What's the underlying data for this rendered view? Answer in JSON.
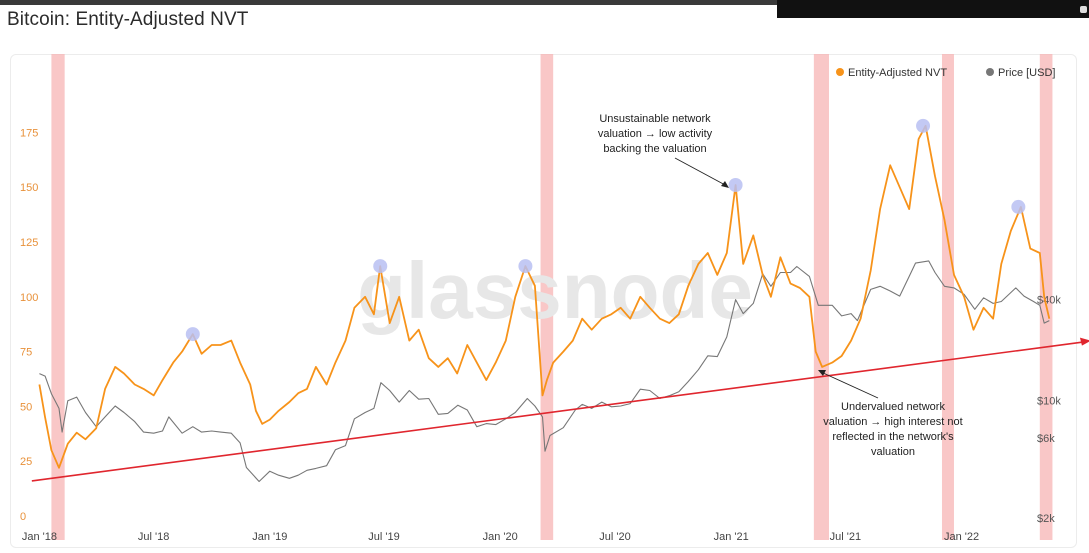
{
  "page": {
    "title": "Bitcoin: Entity-Adjusted NVT"
  },
  "watermark": "glassnode",
  "legend": [
    {
      "label": "Entity-Adjusted NVT",
      "color": "#f7931a"
    },
    {
      "label": "Price [USD]",
      "color": "#777777"
    }
  ],
  "annotations": [
    {
      "lines": [
        "Unsustainable network",
        "valuation → low activity",
        "backing the valuation"
      ]
    },
    {
      "lines": [
        "Undervalued network",
        "valuation → high interest not",
        "reflected in the network's",
        "valuation"
      ]
    }
  ],
  "chart_data": {
    "type": "line",
    "title": "Bitcoin: Entity-Adjusted NVT",
    "x_ticks": [
      "Jan '18",
      "Jul '18",
      "Jan '19",
      "Jul '19",
      "Jan '20",
      "Jul '20",
      "Jan '21",
      "Jul '21",
      "Jan '22"
    ],
    "xlim": [
      "2017-12-25",
      "2022-06-25"
    ],
    "y_left": {
      "ticks": [
        0,
        25,
        50,
        75,
        100,
        125,
        150,
        175
      ],
      "ylim": [
        0,
        195
      ]
    },
    "y_right": {
      "scale": "log",
      "ticks": [
        2000,
        6000,
        10000,
        40000
      ],
      "tick_labels": [
        "$2k",
        "$6k",
        "$10k",
        "$40k"
      ]
    },
    "highlight_bands": [
      [
        "2018-01-20",
        "2018-02-10"
      ],
      [
        "2020-03-05",
        "2020-03-25"
      ],
      [
        "2021-05-12",
        "2021-06-05"
      ],
      [
        "2021-12-01",
        "2021-12-20"
      ],
      [
        "2022-05-05",
        "2022-05-25"
      ]
    ],
    "peak_markers": [
      {
        "date": "2018-09-01",
        "nvt": 83
      },
      {
        "date": "2019-06-25",
        "nvt": 114
      },
      {
        "date": "2020-02-10",
        "nvt": 114
      },
      {
        "date": "2021-01-08",
        "nvt": 151
      },
      {
        "date": "2021-11-01",
        "nvt": 178
      },
      {
        "date": "2022-04-01",
        "nvt": 141
      }
    ],
    "trendline": {
      "start": {
        "date": "2017-12-20",
        "nvt": 16
      },
      "end": {
        "date": "2022-07-25",
        "nvt": 80
      }
    },
    "series": [
      {
        "name": "Entity-Adjusted NVT",
        "axis": "left",
        "color": "#f7931a",
        "points": [
          [
            "2018-01-01",
            60
          ],
          [
            "2018-01-10",
            45
          ],
          [
            "2018-01-20",
            30
          ],
          [
            "2018-02-01",
            22
          ],
          [
            "2018-02-15",
            33
          ],
          [
            "2018-03-01",
            38
          ],
          [
            "2018-03-15",
            35
          ],
          [
            "2018-04-01",
            40
          ],
          [
            "2018-04-15",
            58
          ],
          [
            "2018-05-01",
            68
          ],
          [
            "2018-05-15",
            65
          ],
          [
            "2018-06-01",
            60
          ],
          [
            "2018-06-15",
            58
          ],
          [
            "2018-07-01",
            55
          ],
          [
            "2018-07-15",
            62
          ],
          [
            "2018-08-01",
            70
          ],
          [
            "2018-08-15",
            75
          ],
          [
            "2018-09-01",
            83
          ],
          [
            "2018-09-15",
            74
          ],
          [
            "2018-10-01",
            78
          ],
          [
            "2018-10-15",
            78
          ],
          [
            "2018-11-01",
            80
          ],
          [
            "2018-11-15",
            70
          ],
          [
            "2018-12-01",
            60
          ],
          [
            "2018-12-10",
            48
          ],
          [
            "2018-12-20",
            42
          ],
          [
            "2019-01-01",
            44
          ],
          [
            "2019-01-15",
            48
          ],
          [
            "2019-02-01",
            52
          ],
          [
            "2019-02-15",
            56
          ],
          [
            "2019-03-01",
            58
          ],
          [
            "2019-03-15",
            68
          ],
          [
            "2019-04-01",
            60
          ],
          [
            "2019-04-15",
            70
          ],
          [
            "2019-05-01",
            80
          ],
          [
            "2019-05-15",
            95
          ],
          [
            "2019-06-01",
            100
          ],
          [
            "2019-06-15",
            92
          ],
          [
            "2019-06-25",
            114
          ],
          [
            "2019-07-10",
            88
          ],
          [
            "2019-07-25",
            100
          ],
          [
            "2019-08-10",
            80
          ],
          [
            "2019-08-25",
            85
          ],
          [
            "2019-09-10",
            72
          ],
          [
            "2019-09-25",
            68
          ],
          [
            "2019-10-10",
            72
          ],
          [
            "2019-10-25",
            65
          ],
          [
            "2019-11-10",
            78
          ],
          [
            "2019-11-25",
            70
          ],
          [
            "2019-12-10",
            62
          ],
          [
            "2019-12-25",
            70
          ],
          [
            "2020-01-10",
            80
          ],
          [
            "2020-01-25",
            100
          ],
          [
            "2020-02-10",
            114
          ],
          [
            "2020-02-25",
            105
          ],
          [
            "2020-03-08",
            55
          ],
          [
            "2020-03-15",
            62
          ],
          [
            "2020-03-25",
            70
          ],
          [
            "2020-04-10",
            75
          ],
          [
            "2020-04-25",
            80
          ],
          [
            "2020-05-10",
            90
          ],
          [
            "2020-05-25",
            85
          ],
          [
            "2020-06-10",
            90
          ],
          [
            "2020-06-25",
            92
          ],
          [
            "2020-07-10",
            95
          ],
          [
            "2020-07-25",
            90
          ],
          [
            "2020-08-10",
            100
          ],
          [
            "2020-08-25",
            95
          ],
          [
            "2020-09-10",
            90
          ],
          [
            "2020-09-25",
            88
          ],
          [
            "2020-10-10",
            92
          ],
          [
            "2020-10-25",
            105
          ],
          [
            "2020-11-10",
            115
          ],
          [
            "2020-11-25",
            120
          ],
          [
            "2020-12-10",
            110
          ],
          [
            "2020-12-25",
            120
          ],
          [
            "2021-01-08",
            151
          ],
          [
            "2021-01-20",
            115
          ],
          [
            "2021-02-05",
            128
          ],
          [
            "2021-02-20",
            110
          ],
          [
            "2021-03-05",
            100
          ],
          [
            "2021-03-20",
            118
          ],
          [
            "2021-04-05",
            106
          ],
          [
            "2021-04-20",
            104
          ],
          [
            "2021-05-05",
            100
          ],
          [
            "2021-05-15",
            75
          ],
          [
            "2021-05-25",
            68
          ],
          [
            "2021-06-10",
            70
          ],
          [
            "2021-06-25",
            73
          ],
          [
            "2021-07-10",
            80
          ],
          [
            "2021-07-25",
            90
          ],
          [
            "2021-08-10",
            112
          ],
          [
            "2021-08-25",
            140
          ],
          [
            "2021-09-10",
            160
          ],
          [
            "2021-09-25",
            150
          ],
          [
            "2021-10-10",
            140
          ],
          [
            "2021-10-25",
            172
          ],
          [
            "2021-11-05",
            178
          ],
          [
            "2021-11-20",
            155
          ],
          [
            "2021-12-05",
            135
          ],
          [
            "2021-12-20",
            110
          ],
          [
            "2022-01-05",
            100
          ],
          [
            "2022-01-20",
            85
          ],
          [
            "2022-02-05",
            95
          ],
          [
            "2022-02-20",
            90
          ],
          [
            "2022-03-05",
            115
          ],
          [
            "2022-03-20",
            130
          ],
          [
            "2022-04-05",
            141
          ],
          [
            "2022-04-20",
            122
          ],
          [
            "2022-05-05",
            120
          ],
          [
            "2022-05-12",
            100
          ],
          [
            "2022-05-20",
            90
          ]
        ]
      },
      {
        "name": "Price [USD]",
        "axis": "right",
        "color": "#777777",
        "points": [
          [
            "2018-01-01",
            14500
          ],
          [
            "2018-01-10",
            14000
          ],
          [
            "2018-01-20",
            11000
          ],
          [
            "2018-02-01",
            9000
          ],
          [
            "2018-02-06",
            6500
          ],
          [
            "2018-02-15",
            10000
          ],
          [
            "2018-03-01",
            10500
          ],
          [
            "2018-03-15",
            8500
          ],
          [
            "2018-04-01",
            7000
          ],
          [
            "2018-04-15",
            8000
          ],
          [
            "2018-05-01",
            9300
          ],
          [
            "2018-05-15",
            8500
          ],
          [
            "2018-06-01",
            7500
          ],
          [
            "2018-06-15",
            6500
          ],
          [
            "2018-07-01",
            6400
          ],
          [
            "2018-07-15",
            6600
          ],
          [
            "2018-07-25",
            8000
          ],
          [
            "2018-08-15",
            6400
          ],
          [
            "2018-09-01",
            7000
          ],
          [
            "2018-09-15",
            6500
          ],
          [
            "2018-10-01",
            6600
          ],
          [
            "2018-10-15",
            6500
          ],
          [
            "2018-11-01",
            6400
          ],
          [
            "2018-11-15",
            5600
          ],
          [
            "2018-11-25",
            4000
          ],
          [
            "2018-12-15",
            3300
          ],
          [
            "2019-01-01",
            3800
          ],
          [
            "2019-01-15",
            3600
          ],
          [
            "2019-02-01",
            3450
          ],
          [
            "2019-02-15",
            3600
          ],
          [
            "2019-03-01",
            3850
          ],
          [
            "2019-03-15",
            3950
          ],
          [
            "2019-04-01",
            4100
          ],
          [
            "2019-04-15",
            5100
          ],
          [
            "2019-05-01",
            5400
          ],
          [
            "2019-05-15",
            7800
          ],
          [
            "2019-06-01",
            8500
          ],
          [
            "2019-06-15",
            9000
          ],
          [
            "2019-06-26",
            12800
          ],
          [
            "2019-07-10",
            11500
          ],
          [
            "2019-07-25",
            9800
          ],
          [
            "2019-08-10",
            11500
          ],
          [
            "2019-08-25",
            10200
          ],
          [
            "2019-09-10",
            10300
          ],
          [
            "2019-09-25",
            8300
          ],
          [
            "2019-10-10",
            8400
          ],
          [
            "2019-10-26",
            9400
          ],
          [
            "2019-11-10",
            8800
          ],
          [
            "2019-11-25",
            7000
          ],
          [
            "2019-12-10",
            7300
          ],
          [
            "2019-12-25",
            7200
          ],
          [
            "2020-01-10",
            7800
          ],
          [
            "2020-01-25",
            8500
          ],
          [
            "2020-02-13",
            10300
          ],
          [
            "2020-02-25",
            9300
          ],
          [
            "2020-03-08",
            8000
          ],
          [
            "2020-03-12",
            5000
          ],
          [
            "2020-03-20",
            6200
          ],
          [
            "2020-04-10",
            6900
          ],
          [
            "2020-04-29",
            8800
          ],
          [
            "2020-05-10",
            9500
          ],
          [
            "2020-05-25",
            9000
          ],
          [
            "2020-06-10",
            9800
          ],
          [
            "2020-06-25",
            9200
          ],
          [
            "2020-07-10",
            9300
          ],
          [
            "2020-07-25",
            9600
          ],
          [
            "2020-08-10",
            11700
          ],
          [
            "2020-08-25",
            11500
          ],
          [
            "2020-09-10",
            10300
          ],
          [
            "2020-09-25",
            10700
          ],
          [
            "2020-10-10",
            11300
          ],
          [
            "2020-10-25",
            13000
          ],
          [
            "2020-11-10",
            15300
          ],
          [
            "2020-11-25",
            18500
          ],
          [
            "2020-12-10",
            18300
          ],
          [
            "2020-12-25",
            24000
          ],
          [
            "2021-01-08",
            40000
          ],
          [
            "2021-01-20",
            33000
          ],
          [
            "2021-02-05",
            38000
          ],
          [
            "2021-02-20",
            57000
          ],
          [
            "2021-03-05",
            48000
          ],
          [
            "2021-03-20",
            58000
          ],
          [
            "2021-04-05",
            58000
          ],
          [
            "2021-04-15",
            63000
          ],
          [
            "2021-05-05",
            55000
          ],
          [
            "2021-05-19",
            37000
          ],
          [
            "2021-06-10",
            37000
          ],
          [
            "2021-06-25",
            32000
          ],
          [
            "2021-07-10",
            33000
          ],
          [
            "2021-07-20",
            30000
          ],
          [
            "2021-08-10",
            46000
          ],
          [
            "2021-08-25",
            48000
          ],
          [
            "2021-09-10",
            45000
          ],
          [
            "2021-09-25",
            42000
          ],
          [
            "2021-10-10",
            55000
          ],
          [
            "2021-10-20",
            66000
          ],
          [
            "2021-11-10",
            68000
          ],
          [
            "2021-11-20",
            58000
          ],
          [
            "2021-12-05",
            48000
          ],
          [
            "2021-12-20",
            47000
          ],
          [
            "2022-01-05",
            43000
          ],
          [
            "2022-01-22",
            35000
          ],
          [
            "2022-02-05",
            41000
          ],
          [
            "2022-02-20",
            38000
          ],
          [
            "2022-03-05",
            39000
          ],
          [
            "2022-03-28",
            47000
          ],
          [
            "2022-04-10",
            42000
          ],
          [
            "2022-04-25",
            39000
          ],
          [
            "2022-05-05",
            37000
          ],
          [
            "2022-05-12",
            29000
          ],
          [
            "2022-05-20",
            30000
          ]
        ]
      }
    ]
  }
}
